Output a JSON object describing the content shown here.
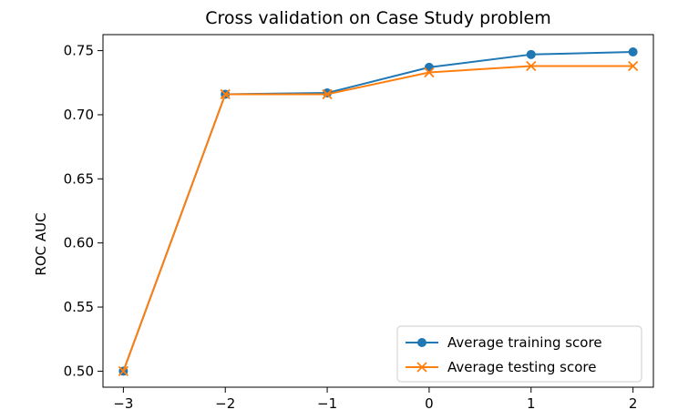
{
  "chart_data": {
    "type": "line",
    "title": "Cross validation on Case Study problem",
    "xlabel": "",
    "ylabel": "ROC AUC",
    "x": [
      -3,
      -2,
      -1,
      0,
      1,
      2
    ],
    "xticks": [
      -3,
      -2,
      -1,
      0,
      1,
      2
    ],
    "xtick_labels": [
      "−3",
      "−2",
      "−1",
      "0",
      "1",
      "2"
    ],
    "yticks": [
      0.5,
      0.55,
      0.6,
      0.65,
      0.7,
      0.75
    ],
    "ytick_labels": [
      "0.50",
      "0.55",
      "0.60",
      "0.65",
      "0.70",
      "0.75"
    ],
    "xlim": [
      -3.2,
      2.2
    ],
    "ylim": [
      0.4875,
      0.7625
    ],
    "grid": false,
    "legend_position": "lower-right",
    "series": [
      {
        "name": "Average training score",
        "values": [
          0.5,
          0.716,
          0.717,
          0.737,
          0.747,
          0.749
        ],
        "color": "#1f77b4",
        "marker": "circle"
      },
      {
        "name": "Average testing score",
        "values": [
          0.5,
          0.716,
          0.716,
          0.733,
          0.738,
          0.738
        ],
        "color": "#ff7f0e",
        "marker": "x"
      }
    ]
  }
}
